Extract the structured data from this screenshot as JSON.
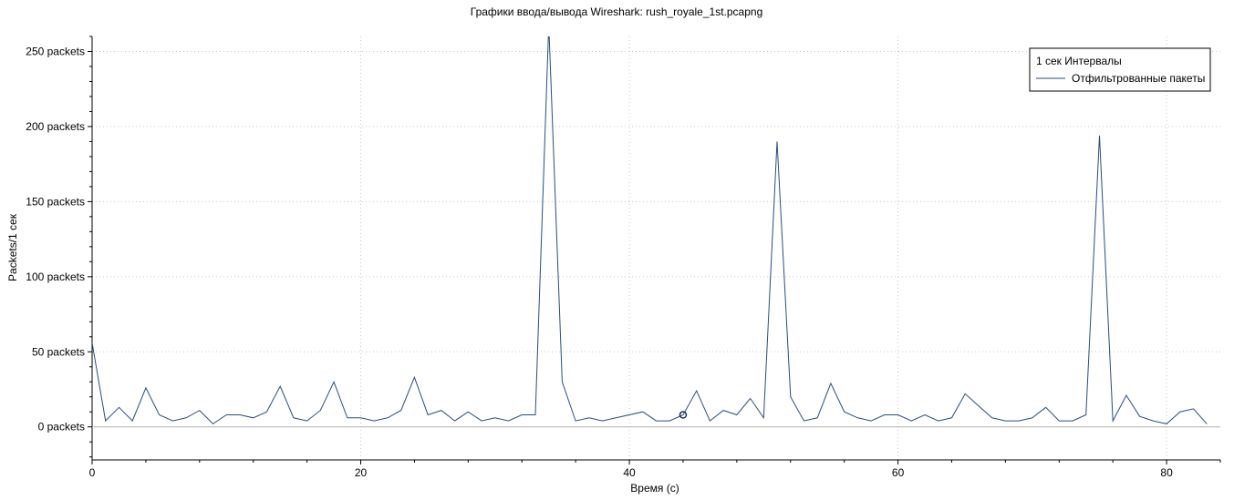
{
  "chart_data": {
    "type": "line",
    "title": "Графики ввода/вывода Wireshark: rush_royale_1st.pcapng",
    "xlabel": "Время (с)",
    "ylabel": "Packets/1 сек",
    "xlim": [
      0,
      84
    ],
    "ylim": [
      -22,
      260
    ],
    "x_ticks": [
      0,
      20,
      40,
      60,
      80
    ],
    "y_ticks": [
      0,
      50,
      100,
      150,
      200,
      250
    ],
    "y_tick_suffix": " packets",
    "grid": true,
    "legend": {
      "position": "top-right",
      "heading": "1 сек Интервалы"
    },
    "marker": {
      "x": 44,
      "y": 8
    },
    "series": [
      {
        "name": "Отфильтрованные пакеты",
        "color": "#2a4d7e",
        "x": [
          0,
          1,
          2,
          3,
          4,
          5,
          6,
          7,
          8,
          9,
          10,
          11,
          12,
          13,
          14,
          15,
          16,
          17,
          18,
          19,
          20,
          21,
          22,
          23,
          24,
          25,
          26,
          27,
          28,
          29,
          30,
          31,
          32,
          33,
          34,
          35,
          36,
          37,
          38,
          39,
          40,
          41,
          42,
          43,
          44,
          45,
          46,
          47,
          48,
          49,
          50,
          51,
          52,
          53,
          54,
          55,
          56,
          57,
          58,
          59,
          60,
          61,
          62,
          63,
          64,
          65,
          66,
          67,
          68,
          69,
          70,
          71,
          72,
          73,
          74,
          75,
          76,
          77,
          78,
          79,
          80,
          81,
          82,
          83
        ],
        "values": [
          56,
          4,
          13,
          4,
          26,
          8,
          4,
          6,
          11,
          2,
          8,
          8,
          6,
          10,
          27,
          6,
          4,
          11,
          30,
          6,
          6,
          4,
          6,
          11,
          33,
          8,
          11,
          4,
          10,
          4,
          6,
          4,
          8,
          8,
          268,
          30,
          4,
          6,
          4,
          6,
          8,
          10,
          4,
          4,
          8,
          24,
          4,
          11,
          8,
          19,
          6,
          190,
          20,
          4,
          6,
          29,
          10,
          6,
          4,
          8,
          8,
          4,
          8,
          4,
          6,
          22,
          14,
          6,
          4,
          4,
          6,
          13,
          4,
          4,
          8,
          194,
          4,
          21,
          7,
          4,
          2,
          10,
          12,
          2
        ]
      }
    ]
  }
}
